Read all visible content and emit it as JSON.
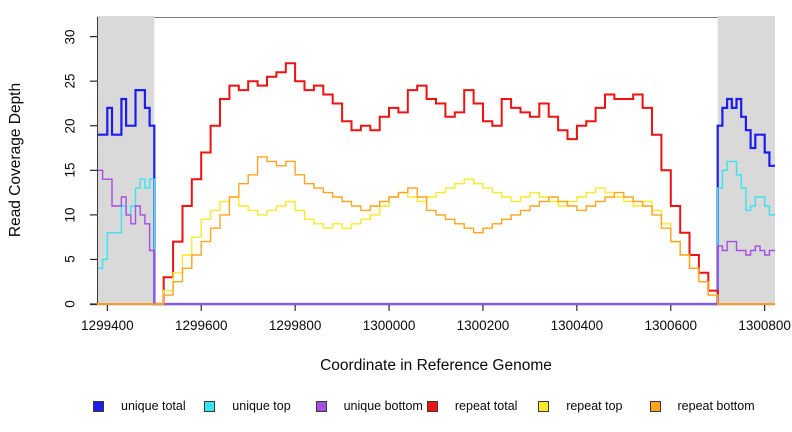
{
  "figure": {
    "x_axis_title": "Coordinate in Reference Genome",
    "y_axis_title": "Read Coverage Depth"
  },
  "chart_data": {
    "type": "line",
    "subtype": "step",
    "title": "",
    "xlabel": "Coordinate in Reference Genome",
    "ylabel": "Read Coverage Depth",
    "xlim": [
      1299378,
      1300822
    ],
    "ylim": [
      0,
      32.2
    ],
    "x_ticks": [
      1299400,
      1299600,
      1299800,
      1300000,
      1300200,
      1300400,
      1300600,
      1300800
    ],
    "y_ticks": [
      0,
      5,
      10,
      15,
      20,
      25,
      30
    ],
    "grid": "off",
    "legend_position": "bottom",
    "shaded_regions": [
      {
        "x0": 1299378,
        "x1": 1299500,
        "color": "#d9d9d9"
      },
      {
        "x0": 1300700,
        "x1": 1300822,
        "color": "#d9d9d9"
      }
    ],
    "series": [
      {
        "name": "unique total",
        "color": "#1d1dee",
        "width": 2.2,
        "segments": [
          {
            "x0": 1299380,
            "dx": 10,
            "values": [
              19,
              19,
              22,
              19,
              19,
              23,
              20,
              20,
              24,
              24,
              22,
              20
            ]
          },
          {
            "x0": 1299500,
            "dx": 1200,
            "values": [
              0
            ]
          },
          {
            "x0": 1300700,
            "dx": 10,
            "values": [
              20,
              22,
              23,
              22,
              23,
              21,
              19.5,
              17.5,
              19,
              19,
              17,
              15.5
            ]
          }
        ]
      },
      {
        "name": "unique top",
        "color": "#35e6ef",
        "width": 1.4,
        "segments": [
          {
            "x0": 1299380,
            "dx": 10,
            "values": [
              4,
              5,
              8,
              8,
              8,
              11,
              10,
              11,
              13,
              14,
              13,
              14
            ]
          },
          {
            "x0": 1299500,
            "dx": 1200,
            "values": [
              0
            ]
          },
          {
            "x0": 1300700,
            "dx": 10,
            "values": [
              13,
              15,
              16,
              16,
              14.5,
              13,
              10.5,
              11,
              12,
              12,
              11,
              10
            ]
          }
        ]
      },
      {
        "name": "unique bottom",
        "color": "#a64ee0",
        "width": 1.4,
        "segments": [
          {
            "x0": 1299380,
            "dx": 10,
            "values": [
              15,
              14,
              14,
              11,
              11,
              12,
              10,
              9,
              11,
              10,
              9,
              6
            ]
          },
          {
            "x0": 1299500,
            "dx": 1200,
            "values": [
              0
            ]
          },
          {
            "x0": 1300700,
            "dx": 10,
            "values": [
              6.5,
              6,
              7,
              7,
              6,
              6,
              5.5,
              6,
              6.5,
              6,
              5.5,
              6
            ]
          }
        ]
      },
      {
        "name": "repeat total",
        "color": "#ee1212",
        "width": 2.0,
        "segments": [
          {
            "x0": 1299378,
            "dx": 122,
            "values": [
              0
            ]
          },
          {
            "x0": 1299500,
            "dx": 20,
            "values": [
              0,
              3,
              7,
              11,
              14,
              17,
              20,
              23,
              24.5,
              24,
              25,
              24.5,
              25.5,
              26,
              27,
              25,
              24,
              24.5,
              23.5,
              22.5,
              20.5,
              19.5,
              20,
              19.5,
              21,
              22,
              21.5,
              24,
              24.5,
              23,
              22.5,
              21,
              21.5,
              24,
              22.5,
              20.5,
              20,
              23,
              22,
              21.5,
              21,
              22.5,
              21,
              19.5,
              18.5,
              20,
              20.5,
              22,
              23.5,
              23,
              23,
              23.5,
              22,
              19,
              15,
              11,
              8,
              5.5,
              3.5,
              1.5
            ]
          },
          {
            "x0": 1300700,
            "dx": 122,
            "values": [
              0
            ]
          }
        ]
      },
      {
        "name": "repeat top",
        "color": "#fbe92c",
        "width": 1.4,
        "segments": [
          {
            "x0": 1299378,
            "dx": 122,
            "values": [
              0
            ]
          },
          {
            "x0": 1299500,
            "dx": 20,
            "values": [
              0,
              1.5,
              3.5,
              5.5,
              7.5,
              9.5,
              10.5,
              11.5,
              12,
              11,
              10.5,
              10,
              10.5,
              11,
              11.5,
              10.5,
              9.5,
              9,
              8.5,
              9,
              8.5,
              9,
              9.5,
              10,
              11,
              12,
              12.5,
              12,
              11.5,
              12,
              12.5,
              13,
              13.5,
              14,
              13.5,
              13,
              12.5,
              12,
              11.5,
              12,
              12.5,
              12,
              11.5,
              11,
              11.5,
              12,
              12.5,
              13,
              12.5,
              12,
              11.5,
              11,
              11.5,
              10.5,
              9,
              7,
              5.5,
              4,
              2.5,
              1
            ]
          },
          {
            "x0": 1300700,
            "dx": 122,
            "values": [
              0
            ]
          }
        ]
      },
      {
        "name": "repeat bottom",
        "color": "#ffa41e",
        "width": 1.4,
        "segments": [
          {
            "x0": 1299378,
            "dx": 122,
            "values": [
              0
            ]
          },
          {
            "x0": 1299500,
            "dx": 20,
            "values": [
              0,
              1,
              2.5,
              4,
              5.5,
              7,
              8.5,
              10,
              12,
              13.5,
              14.5,
              16.5,
              16,
              15.5,
              16,
              14.5,
              13.5,
              13,
              12.5,
              12,
              11.5,
              11,
              10.5,
              11,
              11.5,
              12,
              12.5,
              13,
              12,
              10.5,
              10,
              9.5,
              9,
              8.5,
              8,
              8.5,
              9,
              9.5,
              10,
              10.5,
              11,
              11.5,
              12,
              11.5,
              11,
              10.5,
              11,
              11.5,
              12,
              12.5,
              12,
              11.5,
              11,
              10,
              8.5,
              7,
              5.5,
              4,
              2.5,
              1
            ]
          },
          {
            "x0": 1300700,
            "dx": 122,
            "values": [
              0
            ]
          }
        ]
      }
    ]
  }
}
